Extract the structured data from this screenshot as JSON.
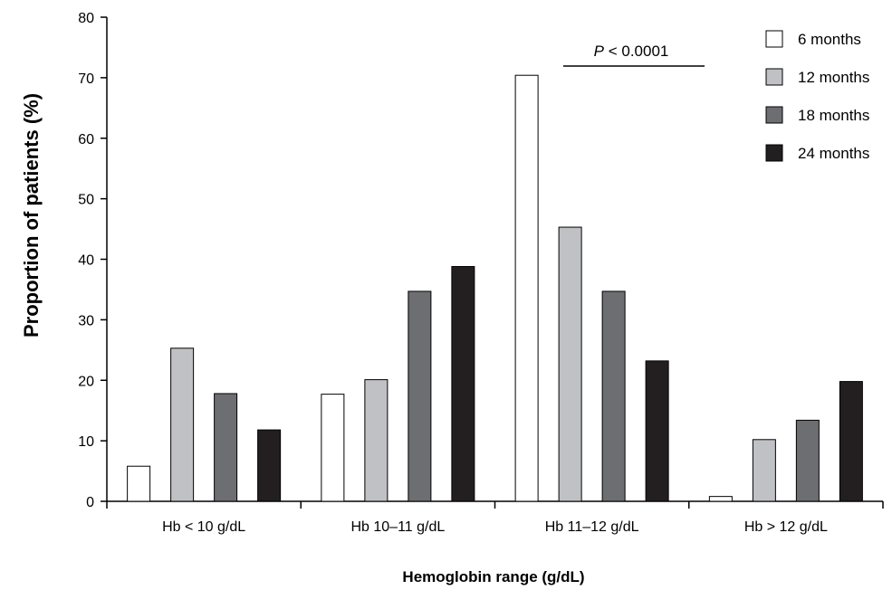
{
  "chart_data": {
    "type": "bar",
    "title": "",
    "xlabel": "Hemoglobin range (g/dL)",
    "ylabel": "Proportion of patients (%)",
    "ylim": [
      0,
      80
    ],
    "yticks": [
      0,
      10,
      20,
      30,
      40,
      50,
      60,
      70,
      80
    ],
    "categories": [
      "Hb < 10 g/dL",
      "Hb 10–11 g/dL",
      "Hb 11–12 g/dL",
      "Hb > 12 g/dL"
    ],
    "series": [
      {
        "name": "6 months",
        "color": "#ffffff",
        "values": [
          5.8,
          17.7,
          70.4,
          0.8
        ]
      },
      {
        "name": "12 months",
        "color": "#c0c1c4",
        "values": [
          25.3,
          20.1,
          45.3,
          10.2
        ]
      },
      {
        "name": "18 months",
        "color": "#6d6e72",
        "values": [
          17.8,
          34.7,
          34.7,
          13.4
        ]
      },
      {
        "name": "24 months",
        "color": "#231f20",
        "values": [
          11.8,
          38.8,
          23.2,
          19.8
        ]
      }
    ],
    "grid": false,
    "legend_position": "top-right",
    "annotation": {
      "p_symbol": "P",
      "text": " < 0.0001"
    }
  }
}
